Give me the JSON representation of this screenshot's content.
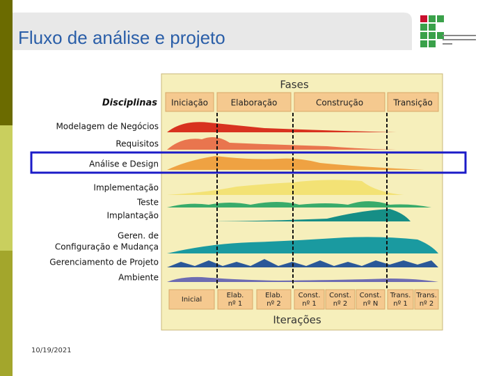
{
  "slide": {
    "title": "Fluxo de análise e projeto",
    "date": "10/19/2021"
  },
  "diagram": {
    "header": "Fases",
    "disciplines_label": "Disciplinas",
    "phases": [
      "Iniciação",
      "Elaboração",
      "Construção",
      "Transição"
    ],
    "disciplines": [
      [
        "Modelagem de Negócios"
      ],
      [
        "Requisitos"
      ],
      [
        "Análise e Design"
      ],
      [
        "Implementação"
      ],
      [
        "Teste"
      ],
      [
        "Implantação"
      ],
      [
        "Geren. de",
        "Configuração e Mudança"
      ],
      [
        "Gerenciamento de Projeto"
      ],
      [
        "Ambiente"
      ]
    ],
    "iterations": [
      [
        "Inicial"
      ],
      [
        "Elab.",
        "nº 1"
      ],
      [
        "Elab.",
        "nº 2"
      ],
      [
        "Const.",
        "nº 1"
      ],
      [
        "Const.",
        "nº 2"
      ],
      [
        "Const.",
        "nº N"
      ],
      [
        "Trans.",
        "nº 1"
      ],
      [
        "Trans.",
        "nº 2"
      ]
    ],
    "footer": "Iterações"
  }
}
